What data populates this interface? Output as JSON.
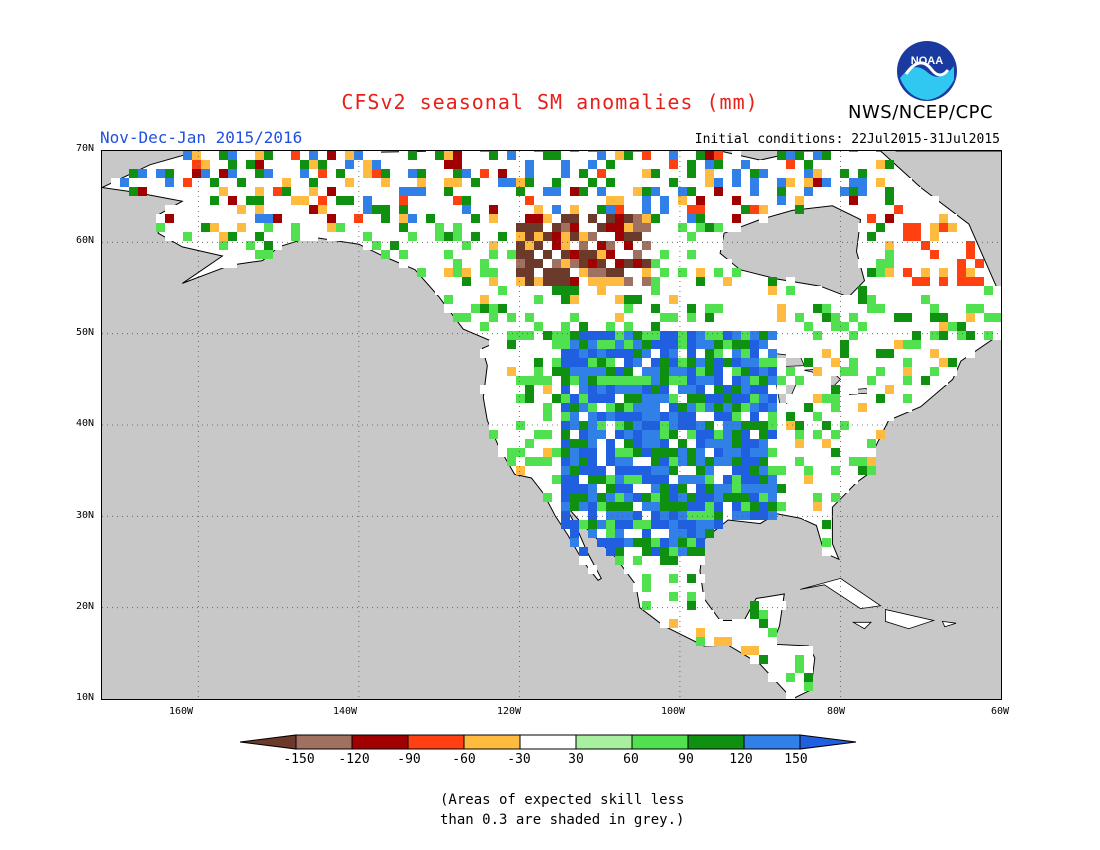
{
  "title": "CFSv2 seasonal SM anomalies (mm)",
  "organization": "NWS/NCEP/CPC",
  "logo_text": "NOAA",
  "season": "Nov-Dec-Jan 2015/2016",
  "initial_conditions": "Initial conditions: 22Jul2015-31Jul2015",
  "map": {
    "lat_labels": [
      "70N",
      "60N",
      "50N",
      "40N",
      "30N",
      "20N",
      "10N"
    ],
    "lon_labels": [
      "160W",
      "140W",
      "120W",
      "100W",
      "80W",
      "60W"
    ],
    "extent": {
      "lon_min": -172,
      "lon_max": -60,
      "lat_min": 10,
      "lat_max": 70
    },
    "grid": true,
    "masked_color": "#c8c8c8",
    "ocean_color": "#c8c8c8"
  },
  "legend": {
    "ticks": [
      "-150",
      "-120",
      "-90",
      "-60",
      "-30",
      "30",
      "60",
      "90",
      "120",
      "150"
    ],
    "colors": [
      "#6b3a2a",
      "#a07060",
      "#a00000",
      "#ff4010",
      "#ffbb40",
      "#ffffff",
      "#a8f0a0",
      "#50e050",
      "#109010",
      "#3080e8",
      "#2060e0"
    ]
  },
  "note": {
    "line1": "(Areas of expected skill less",
    "line2": "than 0.3 are shaded in grey.)"
  }
}
